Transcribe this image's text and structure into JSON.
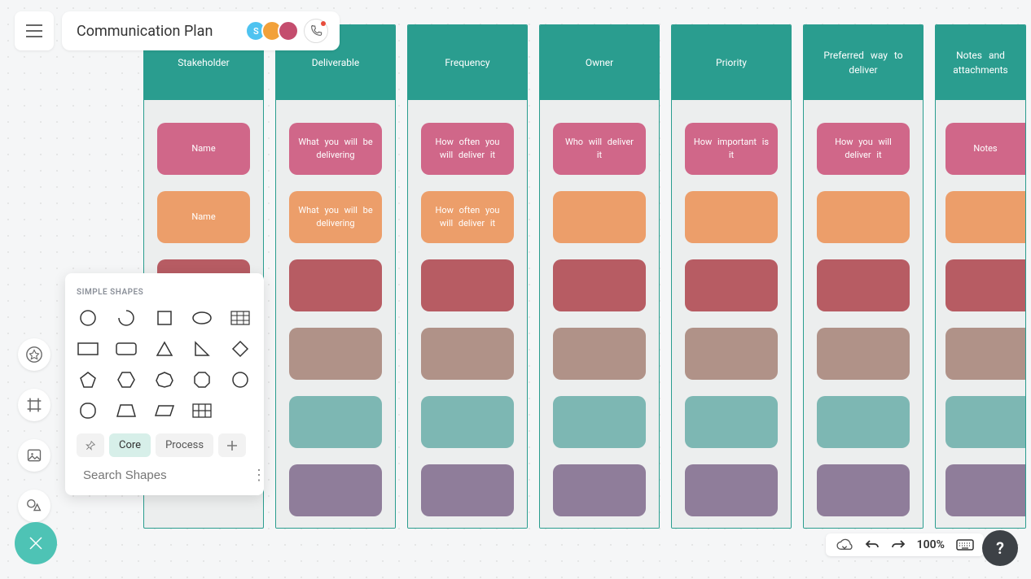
{
  "header": {
    "title": "Communication Plan",
    "avatars": [
      {
        "bg": "#4ec3f0",
        "label": "S"
      },
      {
        "bg": "#f2a13a",
        "label": ""
      },
      {
        "bg": "#c44d6e",
        "label": ""
      }
    ]
  },
  "shapes_panel": {
    "title": "SIMPLE SHAPES",
    "tabs": {
      "core": "Core",
      "process": "Process"
    },
    "search_placeholder": "Search Shapes"
  },
  "board": {
    "header_bg": "#2a9d8f",
    "column_bg": "#eceeee",
    "columns": [
      {
        "title": "Stakeholder",
        "cards": [
          {
            "text": "Name",
            "bg": "#d06789"
          },
          {
            "text": "Name",
            "bg": "#ec9e6a"
          },
          {
            "text": "",
            "bg": "#b75c63"
          }
        ]
      },
      {
        "title": "Deliverable",
        "cards": [
          {
            "text": "What you will be delivering",
            "bg": "#d06789"
          },
          {
            "text": "What you will be delivering",
            "bg": "#ec9e6a"
          },
          {
            "text": "",
            "bg": "#b75c63"
          },
          {
            "text": "",
            "bg": "#b09288"
          },
          {
            "text": "",
            "bg": "#7db7b3"
          },
          {
            "text": "",
            "bg": "#8f7d9a"
          }
        ]
      },
      {
        "title": "Frequency",
        "cards": [
          {
            "text": "How often you will deliver it",
            "bg": "#d06789"
          },
          {
            "text": "How often you will deliver it",
            "bg": "#ec9e6a"
          },
          {
            "text": "",
            "bg": "#b75c63"
          },
          {
            "text": "",
            "bg": "#b09288"
          },
          {
            "text": "",
            "bg": "#7db7b3"
          },
          {
            "text": "",
            "bg": "#8f7d9a"
          }
        ]
      },
      {
        "title": "Owner",
        "cards": [
          {
            "text": "Who will deliver it",
            "bg": "#d06789"
          },
          {
            "text": "",
            "bg": "#ec9e6a"
          },
          {
            "text": "",
            "bg": "#b75c63"
          },
          {
            "text": "",
            "bg": "#b09288"
          },
          {
            "text": "",
            "bg": "#7db7b3"
          },
          {
            "text": "",
            "bg": "#8f7d9a"
          }
        ]
      },
      {
        "title": "Priority",
        "cards": [
          {
            "text": "How important is it",
            "bg": "#d06789"
          },
          {
            "text": "",
            "bg": "#ec9e6a"
          },
          {
            "text": "",
            "bg": "#b75c63"
          },
          {
            "text": "",
            "bg": "#b09288"
          },
          {
            "text": "",
            "bg": "#7db7b3"
          },
          {
            "text": "",
            "bg": "#8f7d9a"
          }
        ]
      },
      {
        "title": "Preferred way to deliver",
        "cards": [
          {
            "text": "How you will deliver it",
            "bg": "#d06789"
          },
          {
            "text": "",
            "bg": "#ec9e6a"
          },
          {
            "text": "",
            "bg": "#b75c63"
          },
          {
            "text": "",
            "bg": "#b09288"
          },
          {
            "text": "",
            "bg": "#7db7b3"
          },
          {
            "text": "",
            "bg": "#8f7d9a"
          }
        ]
      },
      {
        "title": "Notes and attachments",
        "last": true,
        "cards": [
          {
            "text": "Notes",
            "bg": "#d06789"
          },
          {
            "text": "",
            "bg": "#ec9e6a"
          },
          {
            "text": "",
            "bg": "#b75c63"
          },
          {
            "text": "",
            "bg": "#b09288"
          },
          {
            "text": "",
            "bg": "#7db7b3"
          },
          {
            "text": "",
            "bg": "#8f7d9a"
          }
        ]
      }
    ]
  },
  "bottom": {
    "zoom": "100%"
  },
  "help": {
    "label": "?"
  }
}
